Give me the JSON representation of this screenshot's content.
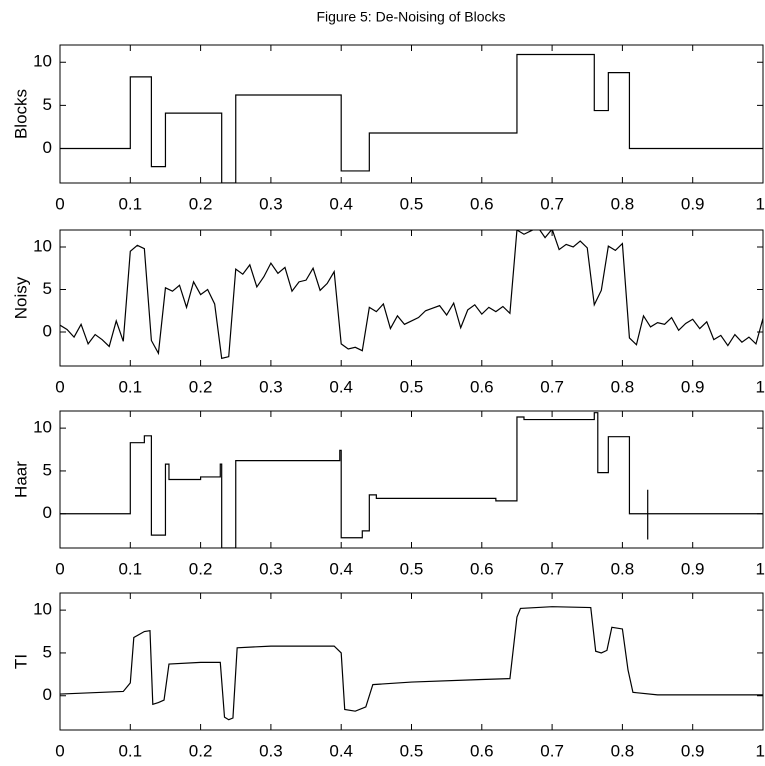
{
  "title": "Figure 5: De-Noising of Blocks",
  "chart_data": [
    {
      "type": "line",
      "ylabel": "Blocks",
      "color": "#000000",
      "x": [
        0,
        0.1,
        0.1,
        0.13,
        0.13,
        0.15,
        0.15,
        0.23,
        0.23,
        0.25,
        0.25,
        0.4,
        0.4,
        0.44,
        0.44,
        0.65,
        0.65,
        0.76,
        0.76,
        0.78,
        0.78,
        0.81,
        0.81,
        1
      ],
      "values": [
        0,
        0,
        8.3,
        8.3,
        -2.1,
        -2.1,
        4.1,
        4.1,
        -4,
        -4,
        6.2,
        6.2,
        -2.6,
        -2.6,
        1.8,
        1.8,
        10.9,
        10.9,
        4.4,
        4.4,
        8.8,
        8.8,
        0,
        0
      ],
      "xlim": [
        0,
        1
      ],
      "ylim": [
        -4,
        12
      ],
      "xticks": [
        0,
        0.1,
        0.2,
        0.3,
        0.4,
        0.5,
        0.6,
        0.7,
        0.8,
        0.9,
        1
      ],
      "yticks": [
        0,
        5,
        10
      ]
    },
    {
      "type": "line",
      "ylabel": "Noisy",
      "color": "#000000",
      "x": [
        0,
        0.01,
        0.02,
        0.03,
        0.04,
        0.05,
        0.06,
        0.07,
        0.08,
        0.09,
        0.1,
        0.11,
        0.12,
        0.13,
        0.14,
        0.15,
        0.16,
        0.17,
        0.18,
        0.19,
        0.2,
        0.21,
        0.22,
        0.23,
        0.24,
        0.25,
        0.26,
        0.27,
        0.28,
        0.29,
        0.3,
        0.31,
        0.32,
        0.33,
        0.34,
        0.35,
        0.36,
        0.37,
        0.38,
        0.39,
        0.4,
        0.41,
        0.42,
        0.43,
        0.44,
        0.45,
        0.46,
        0.47,
        0.48,
        0.49,
        0.5,
        0.51,
        0.52,
        0.53,
        0.54,
        0.55,
        0.56,
        0.57,
        0.58,
        0.59,
        0.6,
        0.61,
        0.62,
        0.63,
        0.64,
        0.65,
        0.66,
        0.67,
        0.68,
        0.69,
        0.7,
        0.71,
        0.72,
        0.73,
        0.74,
        0.75,
        0.76,
        0.77,
        0.78,
        0.79,
        0.8,
        0.81,
        0.82,
        0.83,
        0.84,
        0.85,
        0.86,
        0.87,
        0.88,
        0.89,
        0.9,
        0.91,
        0.92,
        0.93,
        0.94,
        0.95,
        0.96,
        0.97,
        0.98,
        0.99,
        1
      ],
      "values": [
        0.8,
        0.3,
        -0.6,
        0.9,
        -1.4,
        -0.3,
        -0.9,
        -1.7,
        1.3,
        -1.1,
        9.5,
        10.2,
        9.8,
        -1.0,
        -2.5,
        5.2,
        4.8,
        5.5,
        2.9,
        5.9,
        4.4,
        5.0,
        3.3,
        -3.1,
        -2.9,
        7.4,
        6.8,
        7.9,
        5.3,
        6.5,
        8.1,
        6.9,
        7.6,
        4.8,
        5.9,
        6.1,
        7.5,
        4.9,
        5.7,
        7.1,
        -1.4,
        -2.0,
        -1.8,
        -2.2,
        2.9,
        2.4,
        3.3,
        0.4,
        1.9,
        0.9,
        1.3,
        1.7,
        2.5,
        2.8,
        3.1,
        2.0,
        3.4,
        0.5,
        2.6,
        3.2,
        2.1,
        2.9,
        2.4,
        3.0,
        2.2,
        12.0,
        11.5,
        11.9,
        12.3,
        11.1,
        12.1,
        9.7,
        10.3,
        10.0,
        10.7,
        9.9,
        3.2,
        4.9,
        10.1,
        9.6,
        10.4,
        -0.7,
        -1.5,
        1.9,
        0.6,
        1.1,
        0.9,
        1.7,
        0.2,
        1.0,
        1.5,
        0.4,
        1.2,
        -0.9,
        -0.4,
        -1.6,
        -0.3,
        -1.2,
        -0.6,
        -1.4,
        1.6
      ],
      "xlim": [
        0,
        1
      ],
      "ylim": [
        -4,
        12
      ],
      "xticks": [
        0,
        0.1,
        0.2,
        0.3,
        0.4,
        0.5,
        0.6,
        0.7,
        0.8,
        0.9,
        1
      ],
      "yticks": [
        0,
        5,
        10
      ]
    },
    {
      "type": "line",
      "ylabel": "Haar",
      "color": "#000000",
      "x": [
        0,
        0.1,
        0.1,
        0.12,
        0.12,
        0.13,
        0.13,
        0.15,
        0.15,
        0.155,
        0.155,
        0.2,
        0.2,
        0.228,
        0.228,
        0.23,
        0.23,
        0.25,
        0.25,
        0.398,
        0.398,
        0.4,
        0.4,
        0.43,
        0.43,
        0.44,
        0.44,
        0.45,
        0.45,
        0.62,
        0.62,
        0.65,
        0.65,
        0.66,
        0.66,
        0.76,
        0.76,
        0.765,
        0.765,
        0.78,
        0.78,
        0.81,
        0.81,
        0.836,
        0.836,
        0.836,
        0.836,
        1
      ],
      "values": [
        0,
        0,
        8.3,
        8.3,
        9.1,
        9.1,
        -2.5,
        -2.5,
        5.8,
        5.8,
        4.0,
        4.0,
        4.3,
        4.3,
        5.8,
        5.8,
        -4,
        -4,
        6.2,
        6.2,
        7.4,
        7.4,
        -2.8,
        -2.8,
        -2.0,
        -2.0,
        2.2,
        2.2,
        1.8,
        1.8,
        1.5,
        1.5,
        11.3,
        11.3,
        11.0,
        11.0,
        11.8,
        11.8,
        4.8,
        4.8,
        9.0,
        9.0,
        0,
        0,
        -3.0,
        2.8,
        0,
        0
      ],
      "xlim": [
        0,
        1
      ],
      "ylim": [
        -4,
        12
      ],
      "xticks": [
        0,
        0.1,
        0.2,
        0.3,
        0.4,
        0.5,
        0.6,
        0.7,
        0.8,
        0.9,
        1
      ],
      "yticks": [
        0,
        5,
        10
      ]
    },
    {
      "type": "line",
      "ylabel": "TI",
      "color": "#000000",
      "x": [
        0,
        0.09,
        0.1,
        0.105,
        0.12,
        0.128,
        0.132,
        0.14,
        0.148,
        0.155,
        0.2,
        0.228,
        0.234,
        0.24,
        0.246,
        0.252,
        0.3,
        0.39,
        0.4,
        0.405,
        0.42,
        0.435,
        0.445,
        0.5,
        0.6,
        0.64,
        0.65,
        0.655,
        0.7,
        0.755,
        0.762,
        0.77,
        0.778,
        0.785,
        0.8,
        0.808,
        0.815,
        0.85,
        1
      ],
      "values": [
        0.2,
        0.5,
        1.5,
        6.8,
        7.5,
        7.6,
        -1.0,
        -0.8,
        -0.5,
        3.7,
        3.9,
        3.9,
        -2.5,
        -2.8,
        -2.6,
        5.6,
        5.8,
        5.8,
        5.0,
        -1.6,
        -1.8,
        -1.3,
        1.3,
        1.6,
        1.9,
        2.0,
        9.2,
        10.2,
        10.4,
        10.3,
        5.2,
        5.0,
        5.3,
        8.0,
        7.8,
        3.0,
        0.4,
        0.1,
        0.1
      ],
      "xlim": [
        0,
        1
      ],
      "ylim": [
        -4,
        12
      ],
      "xticks": [
        0,
        0.1,
        0.2,
        0.3,
        0.4,
        0.5,
        0.6,
        0.7,
        0.8,
        0.9,
        1
      ],
      "yticks": [
        0,
        5,
        10
      ]
    }
  ]
}
